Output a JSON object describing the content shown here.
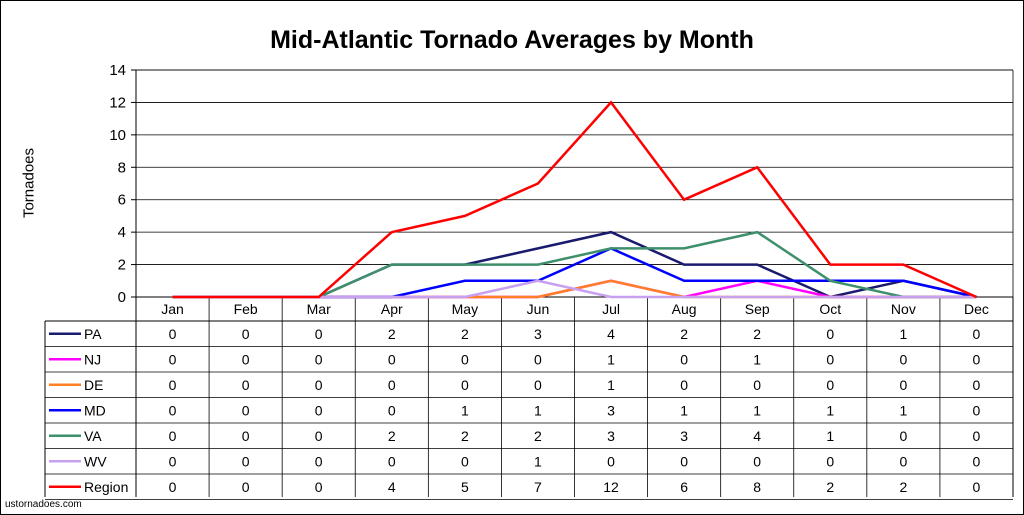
{
  "source_label": "ustornadoes.com",
  "chart_data": {
    "type": "line",
    "title": "Mid-Atlantic Tornado Averages by Month",
    "xlabel": "",
    "ylabel": "Tornadoes",
    "ylim": [
      0,
      14
    ],
    "yticks": [
      0,
      2,
      4,
      6,
      8,
      10,
      12,
      14
    ],
    "grid": true,
    "legend_placement": "table-left",
    "categories": [
      "Jan",
      "Feb",
      "Mar",
      "Apr",
      "May",
      "Jun",
      "Jul",
      "Aug",
      "Sep",
      "Oct",
      "Nov",
      "Dec"
    ],
    "series": [
      {
        "name": "PA",
        "color": "#1a1a6e",
        "values": [
          0,
          0,
          0,
          2,
          2,
          3,
          4,
          2,
          2,
          0,
          1,
          0
        ]
      },
      {
        "name": "NJ",
        "color": "#ff00ff",
        "values": [
          0,
          0,
          0,
          0,
          0,
          0,
          1,
          0,
          1,
          0,
          0,
          0
        ]
      },
      {
        "name": "DE",
        "color": "#ff7f27",
        "values": [
          0,
          0,
          0,
          0,
          0,
          0,
          1,
          0,
          0,
          0,
          0,
          0
        ]
      },
      {
        "name": "MD",
        "color": "#0000ff",
        "values": [
          0,
          0,
          0,
          0,
          1,
          1,
          3,
          1,
          1,
          1,
          1,
          0
        ]
      },
      {
        "name": "VA",
        "color": "#3e8f6b",
        "values": [
          0,
          0,
          0,
          2,
          2,
          2,
          3,
          3,
          4,
          1,
          0,
          0
        ]
      },
      {
        "name": "WV",
        "color": "#c8a0f0",
        "values": [
          0,
          0,
          0,
          0,
          0,
          1,
          0,
          0,
          0,
          0,
          0,
          0
        ]
      },
      {
        "name": "Region",
        "color": "#ff0000",
        "values": [
          0,
          0,
          0,
          4,
          5,
          7,
          12,
          6,
          8,
          2,
          2,
          0
        ]
      }
    ]
  }
}
